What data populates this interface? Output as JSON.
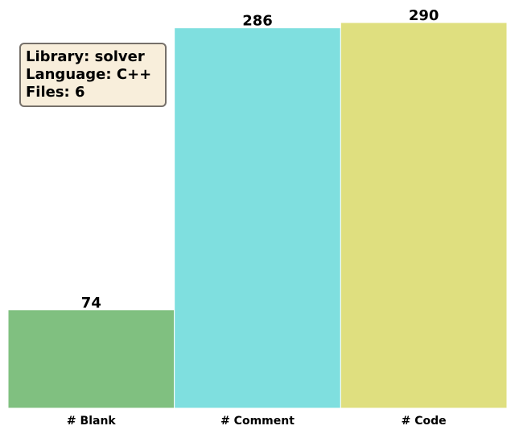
{
  "chart_data": {
    "type": "bar",
    "categories": [
      "# Blank",
      "# Comment",
      "# Code"
    ],
    "values": [
      74,
      286,
      290
    ],
    "colors": [
      "#80c080",
      "#7fdfdf",
      "#dfdf7f"
    ],
    "ylim": [
      0,
      290
    ],
    "grid": false,
    "title": "",
    "xlabel": "",
    "ylabel": ""
  },
  "info_box": {
    "lines": [
      "Library: solver",
      "Language: C++",
      "Files: 6"
    ]
  }
}
